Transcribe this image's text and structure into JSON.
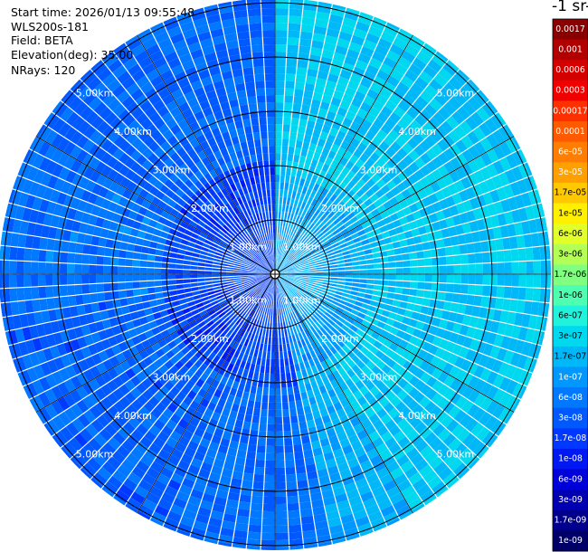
{
  "header": {
    "start_time": "Start time: 2026/01/13 09:55:48",
    "instrument": "WLS200s-181",
    "field": "Field: BETA",
    "elevation": "Elevation(deg): 35.00",
    "nrays": "NRays: 120"
  },
  "plot": {
    "ring_labels": [
      "1.00km",
      "2.00km",
      "3.00km",
      "4.00km",
      "5.00km"
    ]
  },
  "colorbar": {
    "title": "-1 sr-",
    "levels": [
      {
        "label": "0.0017",
        "color": "#8a0000"
      },
      {
        "label": "0.001",
        "color": "#b00000"
      },
      {
        "label": "0.0006",
        "color": "#d40000"
      },
      {
        "label": "0.0003",
        "color": "#f20000"
      },
      {
        "label": "0.00017",
        "color": "#ff3000"
      },
      {
        "label": "0.0001",
        "color": "#ff5a00"
      },
      {
        "label": "6e-05",
        "color": "#ff7d00"
      },
      {
        "label": "3e-05",
        "color": "#ffa000"
      },
      {
        "label": "1.7e-05",
        "color": "#ffc800"
      },
      {
        "label": "1e-05",
        "color": "#fff000"
      },
      {
        "label": "6e-06",
        "color": "#e2ff2a"
      },
      {
        "label": "3e-06",
        "color": "#b4ff55"
      },
      {
        "label": "1.7e-06",
        "color": "#80ff80"
      },
      {
        "label": "1e-06",
        "color": "#4dffb0"
      },
      {
        "label": "6e-07",
        "color": "#20f2dc"
      },
      {
        "label": "3e-07",
        "color": "#00d8f0"
      },
      {
        "label": "1.7e-07",
        "color": "#00b8f8"
      },
      {
        "label": "1e-07",
        "color": "#0098ff"
      },
      {
        "label": "6e-08",
        "color": "#0078ff"
      },
      {
        "label": "3e-08",
        "color": "#0058ff"
      },
      {
        "label": "1.7e-08",
        "color": "#0038ff"
      },
      {
        "label": "1e-08",
        "color": "#0018f2"
      },
      {
        "label": "6e-09",
        "color": "#0000d8"
      },
      {
        "label": "3e-09",
        "color": "#0000b2"
      },
      {
        "label": "1.7e-09",
        "color": "#00008c"
      },
      {
        "label": "1e-09",
        "color": "#000068"
      }
    ]
  }
}
